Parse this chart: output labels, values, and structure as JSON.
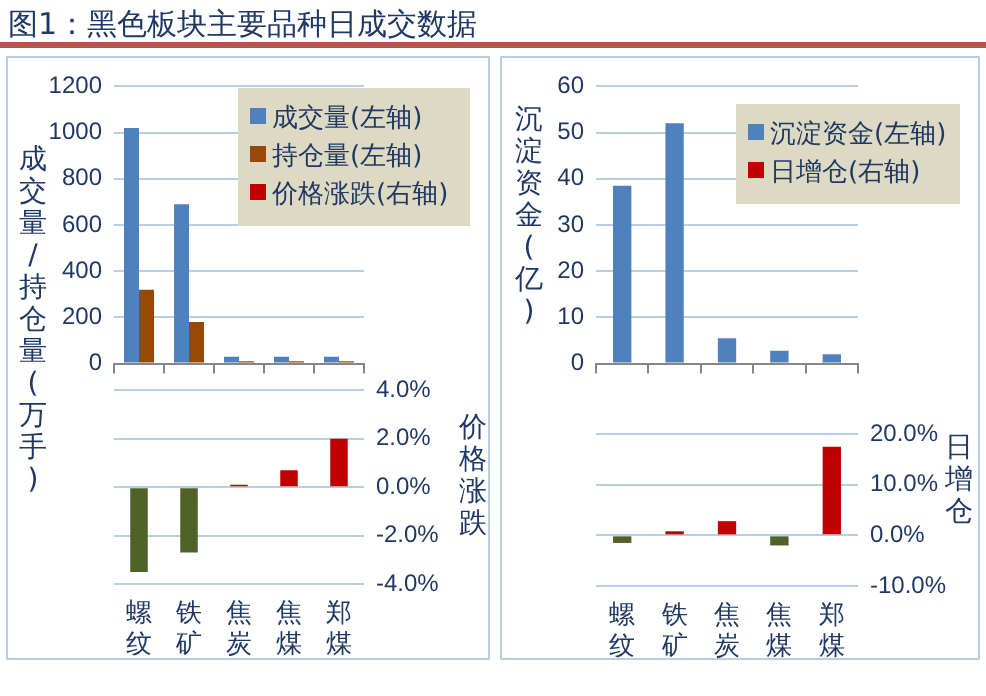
{
  "chart_data": [
    {
      "type": "bar",
      "title": "图1：黑色板块主要品种日成交数据",
      "ylabel": "成交量/持仓量(万手)",
      "categories": [
        null,
        null,
        null,
        null,
        null
      ],
      "series": [
        {
          "name": "成交量(左轴)",
          "color": "#4f81bd",
          "values": [
            1020,
            690,
            30,
            30,
            30
          ]
        },
        {
          "name": "持仓量(左轴)",
          "color": "#984807",
          "values": [
            320,
            180,
            10,
            10,
            10
          ]
        }
      ],
      "ylim": [
        0,
        1200
      ],
      "yticks": [
        0,
        200,
        400,
        600,
        800,
        1000,
        1200
      ],
      "grid": "y",
      "legend": "top right",
      "tick_labels": "y"
    },
    {
      "type": "bar",
      "y2label": "价格涨跌",
      "categories": [
        "螺纹",
        "铁矿",
        "焦炭",
        "焦煤",
        "郑煤"
      ],
      "series": [
        {
          "name": "价格涨跌(右轴)",
          "color": "#c00000",
          "colors": [
            "#4f6228",
            "#4f6228",
            "#c00000",
            "#c00000",
            "#c00000"
          ],
          "values": [
            -3.5,
            -2.7,
            0.1,
            0.7,
            2.0
          ],
          "axis": "y2"
        }
      ],
      "y2lim": [
        -4,
        4
      ],
      "y2ticks": [
        {
          "value": -4,
          "label": "-4.0%"
        },
        {
          "value": -2,
          "label": "-2.0%"
        },
        {
          "value": 0,
          "label": "0.0%"
        },
        {
          "value": 2,
          "label": "2.0%"
        },
        {
          "value": 4,
          "label": "4.0%"
        }
      ],
      "grid": "y",
      "legend": "top right"
    },
    {
      "type": "bar",
      "ylabel": "沉淀资金(亿)",
      "categories": [
        null,
        null,
        null,
        null,
        null
      ],
      "series": [
        {
          "name": "沉淀资金(左轴)",
          "color": "#4f81bd",
          "values": [
            38.5,
            52,
            5.5,
            2.8,
            2.0
          ]
        }
      ],
      "ylim": [
        0,
        60
      ],
      "yticks": [
        0,
        10,
        20,
        30,
        40,
        50,
        60
      ],
      "grid": "y",
      "legend": "top right",
      "tick_labels": "y"
    },
    {
      "type": "bar",
      "y2label": "日增仓",
      "categories": [
        "螺纹",
        "铁矿",
        "焦炭",
        "焦煤",
        "郑煤"
      ],
      "series": [
        {
          "name": "日增仓(右轴)",
          "color": "#c00000",
          "colors": [
            "#4f6228",
            "#c00000",
            "#c00000",
            "#4f6228",
            "#c00000"
          ],
          "values": [
            -1.5,
            0.8,
            2.8,
            -2.0,
            17.5
          ],
          "axis": "y2"
        }
      ],
      "y2lim": [
        -10,
        20
      ],
      "y2ticks": [
        {
          "value": -10,
          "label": "-10.0%"
        },
        {
          "value": 0,
          "label": "0.0%"
        },
        {
          "value": 10,
          "label": "10.0%"
        },
        {
          "value": 20,
          "label": "20.0%"
        }
      ],
      "grid": "y",
      "legend": "top right"
    }
  ]
}
